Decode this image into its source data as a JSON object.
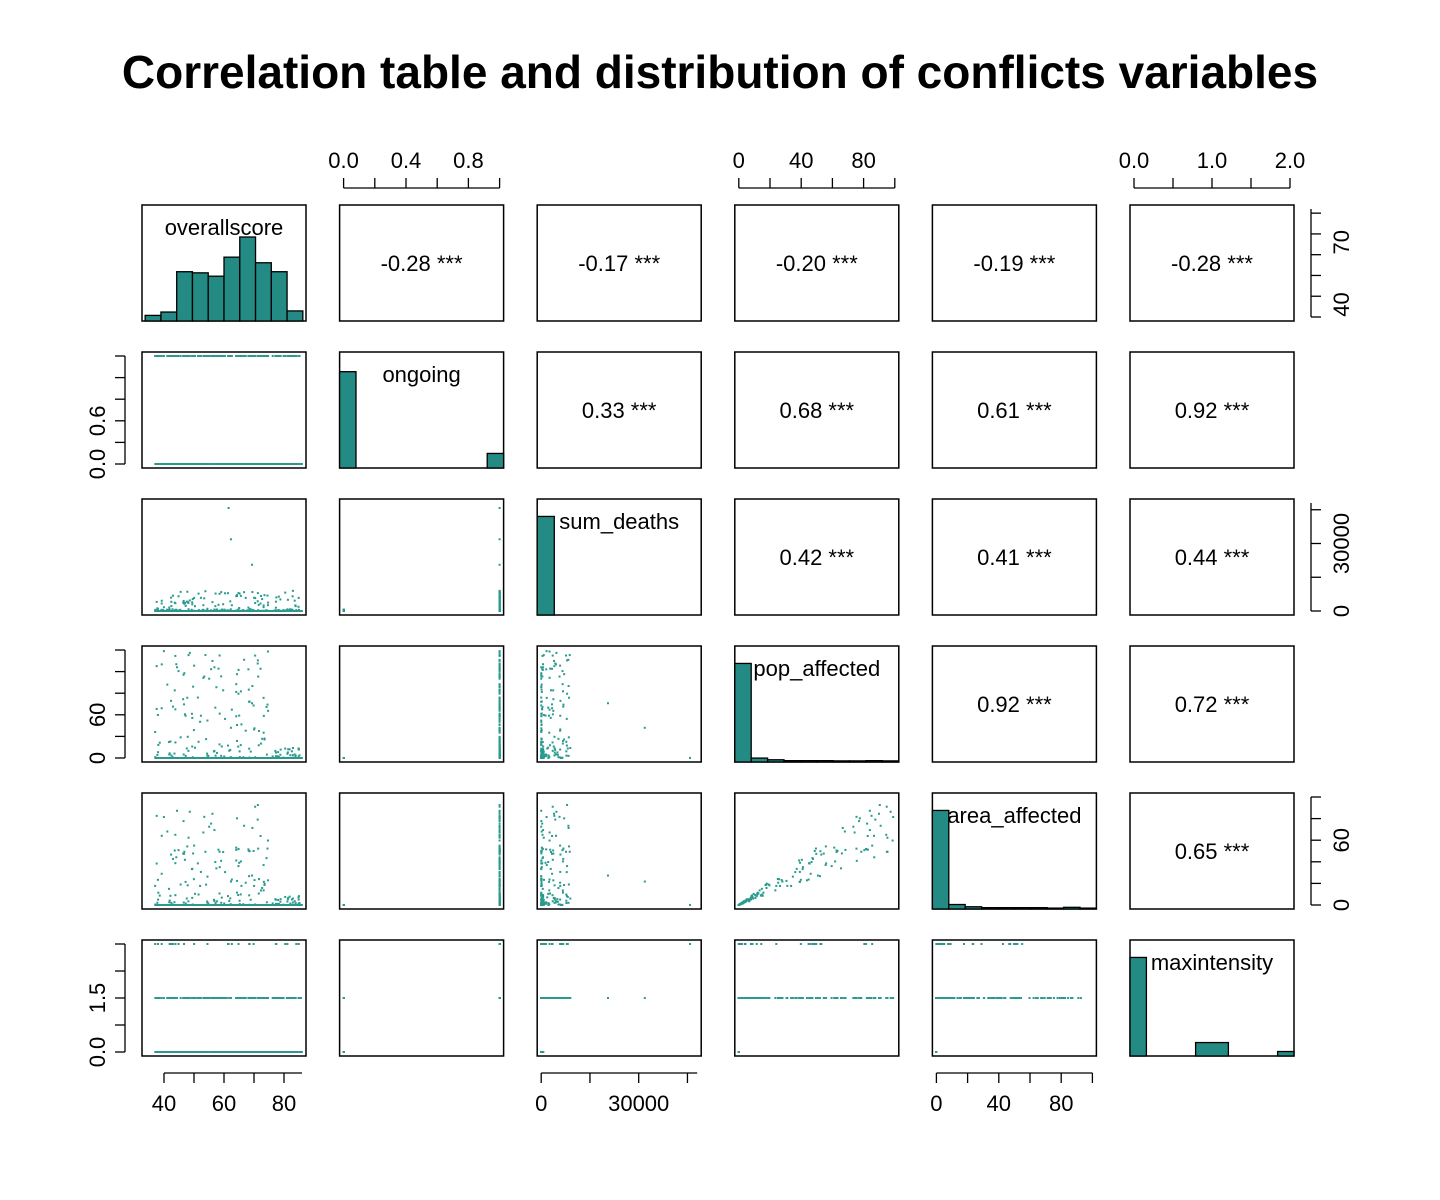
{
  "chart_data": {
    "type": "scatter_matrix",
    "title": "Correlation table and distribution of conflicts variables",
    "variables": [
      "overallscore",
      "ongoing",
      "sum_deaths",
      "pop_affected",
      "area_affected",
      "maxintensity"
    ],
    "ranges": [
      [
        34,
        86
      ],
      [
        0,
        1
      ],
      [
        0,
        48000
      ],
      [
        0,
        100
      ],
      [
        0,
        100
      ],
      [
        0,
        2
      ]
    ],
    "ticks": [
      [
        40,
        60,
        80
      ],
      [
        0.0,
        0.4,
        0.8
      ],
      [
        0,
        30000
      ],
      [
        0,
        40,
        80
      ],
      [
        0,
        40,
        80
      ],
      [
        0.0,
        1.0,
        2.0
      ]
    ],
    "tick_labels": {
      "top": [
        {
          "var": 1,
          "labels": [
            "0.0",
            "0.4",
            "0.8"
          ]
        },
        {
          "var": 3,
          "labels": [
            "0",
            "40",
            "80"
          ]
        },
        {
          "var": 5,
          "labels": [
            "0.0",
            "1.0",
            "2.0"
          ]
        }
      ],
      "bottom": [
        {
          "var": 0,
          "labels": [
            "40",
            "60",
            "80"
          ]
        },
        {
          "var": 2,
          "labels": [
            "0",
            "30000"
          ]
        },
        {
          "var": 4,
          "labels": [
            "0",
            "40",
            "80"
          ]
        }
      ],
      "left": [
        {
          "var": 1,
          "labels": [
            "0.0",
            "0.6"
          ]
        },
        {
          "var": 3,
          "labels": [
            "0",
            "60"
          ]
        },
        {
          "var": 5,
          "labels": [
            "0.0",
            "1.5"
          ]
        }
      ],
      "right": [
        {
          "var": 0,
          "labels": [
            "40",
            "70"
          ]
        },
        {
          "var": 2,
          "labels": [
            "0",
            "30000"
          ]
        },
        {
          "var": 4,
          "labels": [
            "0",
            "60"
          ]
        }
      ]
    },
    "correlations": [
      {
        "row": 0,
        "col": 1,
        "label": "-0.28 ***"
      },
      {
        "row": 0,
        "col": 2,
        "label": "-0.17 ***"
      },
      {
        "row": 0,
        "col": 3,
        "label": "-0.20 ***"
      },
      {
        "row": 0,
        "col": 4,
        "label": "-0.19 ***"
      },
      {
        "row": 0,
        "col": 5,
        "label": "-0.28 ***"
      },
      {
        "row": 1,
        "col": 2,
        "label": "0.33 ***"
      },
      {
        "row": 1,
        "col": 3,
        "label": "0.68 ***"
      },
      {
        "row": 1,
        "col": 4,
        "label": "0.61 ***"
      },
      {
        "row": 1,
        "col": 5,
        "label": "0.92 ***"
      },
      {
        "row": 2,
        "col": 3,
        "label": "0.42 ***"
      },
      {
        "row": 2,
        "col": 4,
        "label": "0.41 ***"
      },
      {
        "row": 2,
        "col": 5,
        "label": "0.44 ***"
      },
      {
        "row": 3,
        "col": 4,
        "label": "0.92 ***"
      },
      {
        "row": 3,
        "col": 5,
        "label": "0.72 ***"
      },
      {
        "row": 4,
        "col": 5,
        "label": "0.65 ***"
      }
    ],
    "histograms": [
      {
        "var": 0,
        "bin_edges": [
          35,
          40,
          45,
          50,
          55,
          60,
          65,
          70,
          75,
          80,
          85
        ],
        "relative_heights": [
          0.05,
          0.08,
          0.44,
          0.43,
          0.4,
          0.57,
          0.75,
          0.52,
          0.44,
          0.09
        ]
      },
      {
        "var": 1,
        "bin_edges": [
          0.0,
          0.1,
          0.9,
          1.0
        ],
        "relative_heights": [
          0.86,
          0.0,
          0.13
        ]
      },
      {
        "var": 2,
        "bin_edges": [
          0,
          5000,
          10000,
          15000,
          20000,
          25000,
          30000,
          35000,
          40000,
          45000,
          48000
        ],
        "relative_heights": [
          0.88,
          0,
          0,
          0,
          0,
          0,
          0,
          0,
          0,
          0
        ]
      },
      {
        "var": 3,
        "bin_edges": [
          0,
          10,
          20,
          30,
          40,
          50,
          60,
          70,
          80,
          90,
          100
        ],
        "relative_heights": [
          0.88,
          0.035,
          0.02,
          0.012,
          0.012,
          0.012,
          0.01,
          0.01,
          0.012,
          0.01
        ]
      },
      {
        "var": 4,
        "bin_edges": [
          0,
          10,
          20,
          30,
          40,
          50,
          60,
          70,
          80,
          90,
          100
        ],
        "relative_heights": [
          0.88,
          0.04,
          0.02,
          0.012,
          0.012,
          0.012,
          0.012,
          0.008,
          0.015,
          0.008
        ]
      },
      {
        "var": 5,
        "bin_edges": [
          0.0,
          0.2,
          0.8,
          1.2,
          1.8,
          2.0
        ],
        "relative_heights": [
          0.88,
          0.0,
          0.12,
          0.0,
          0.04
        ]
      }
    ],
    "point_color": "#2a9a8e",
    "bar_color": "#238a84",
    "grid": false
  }
}
